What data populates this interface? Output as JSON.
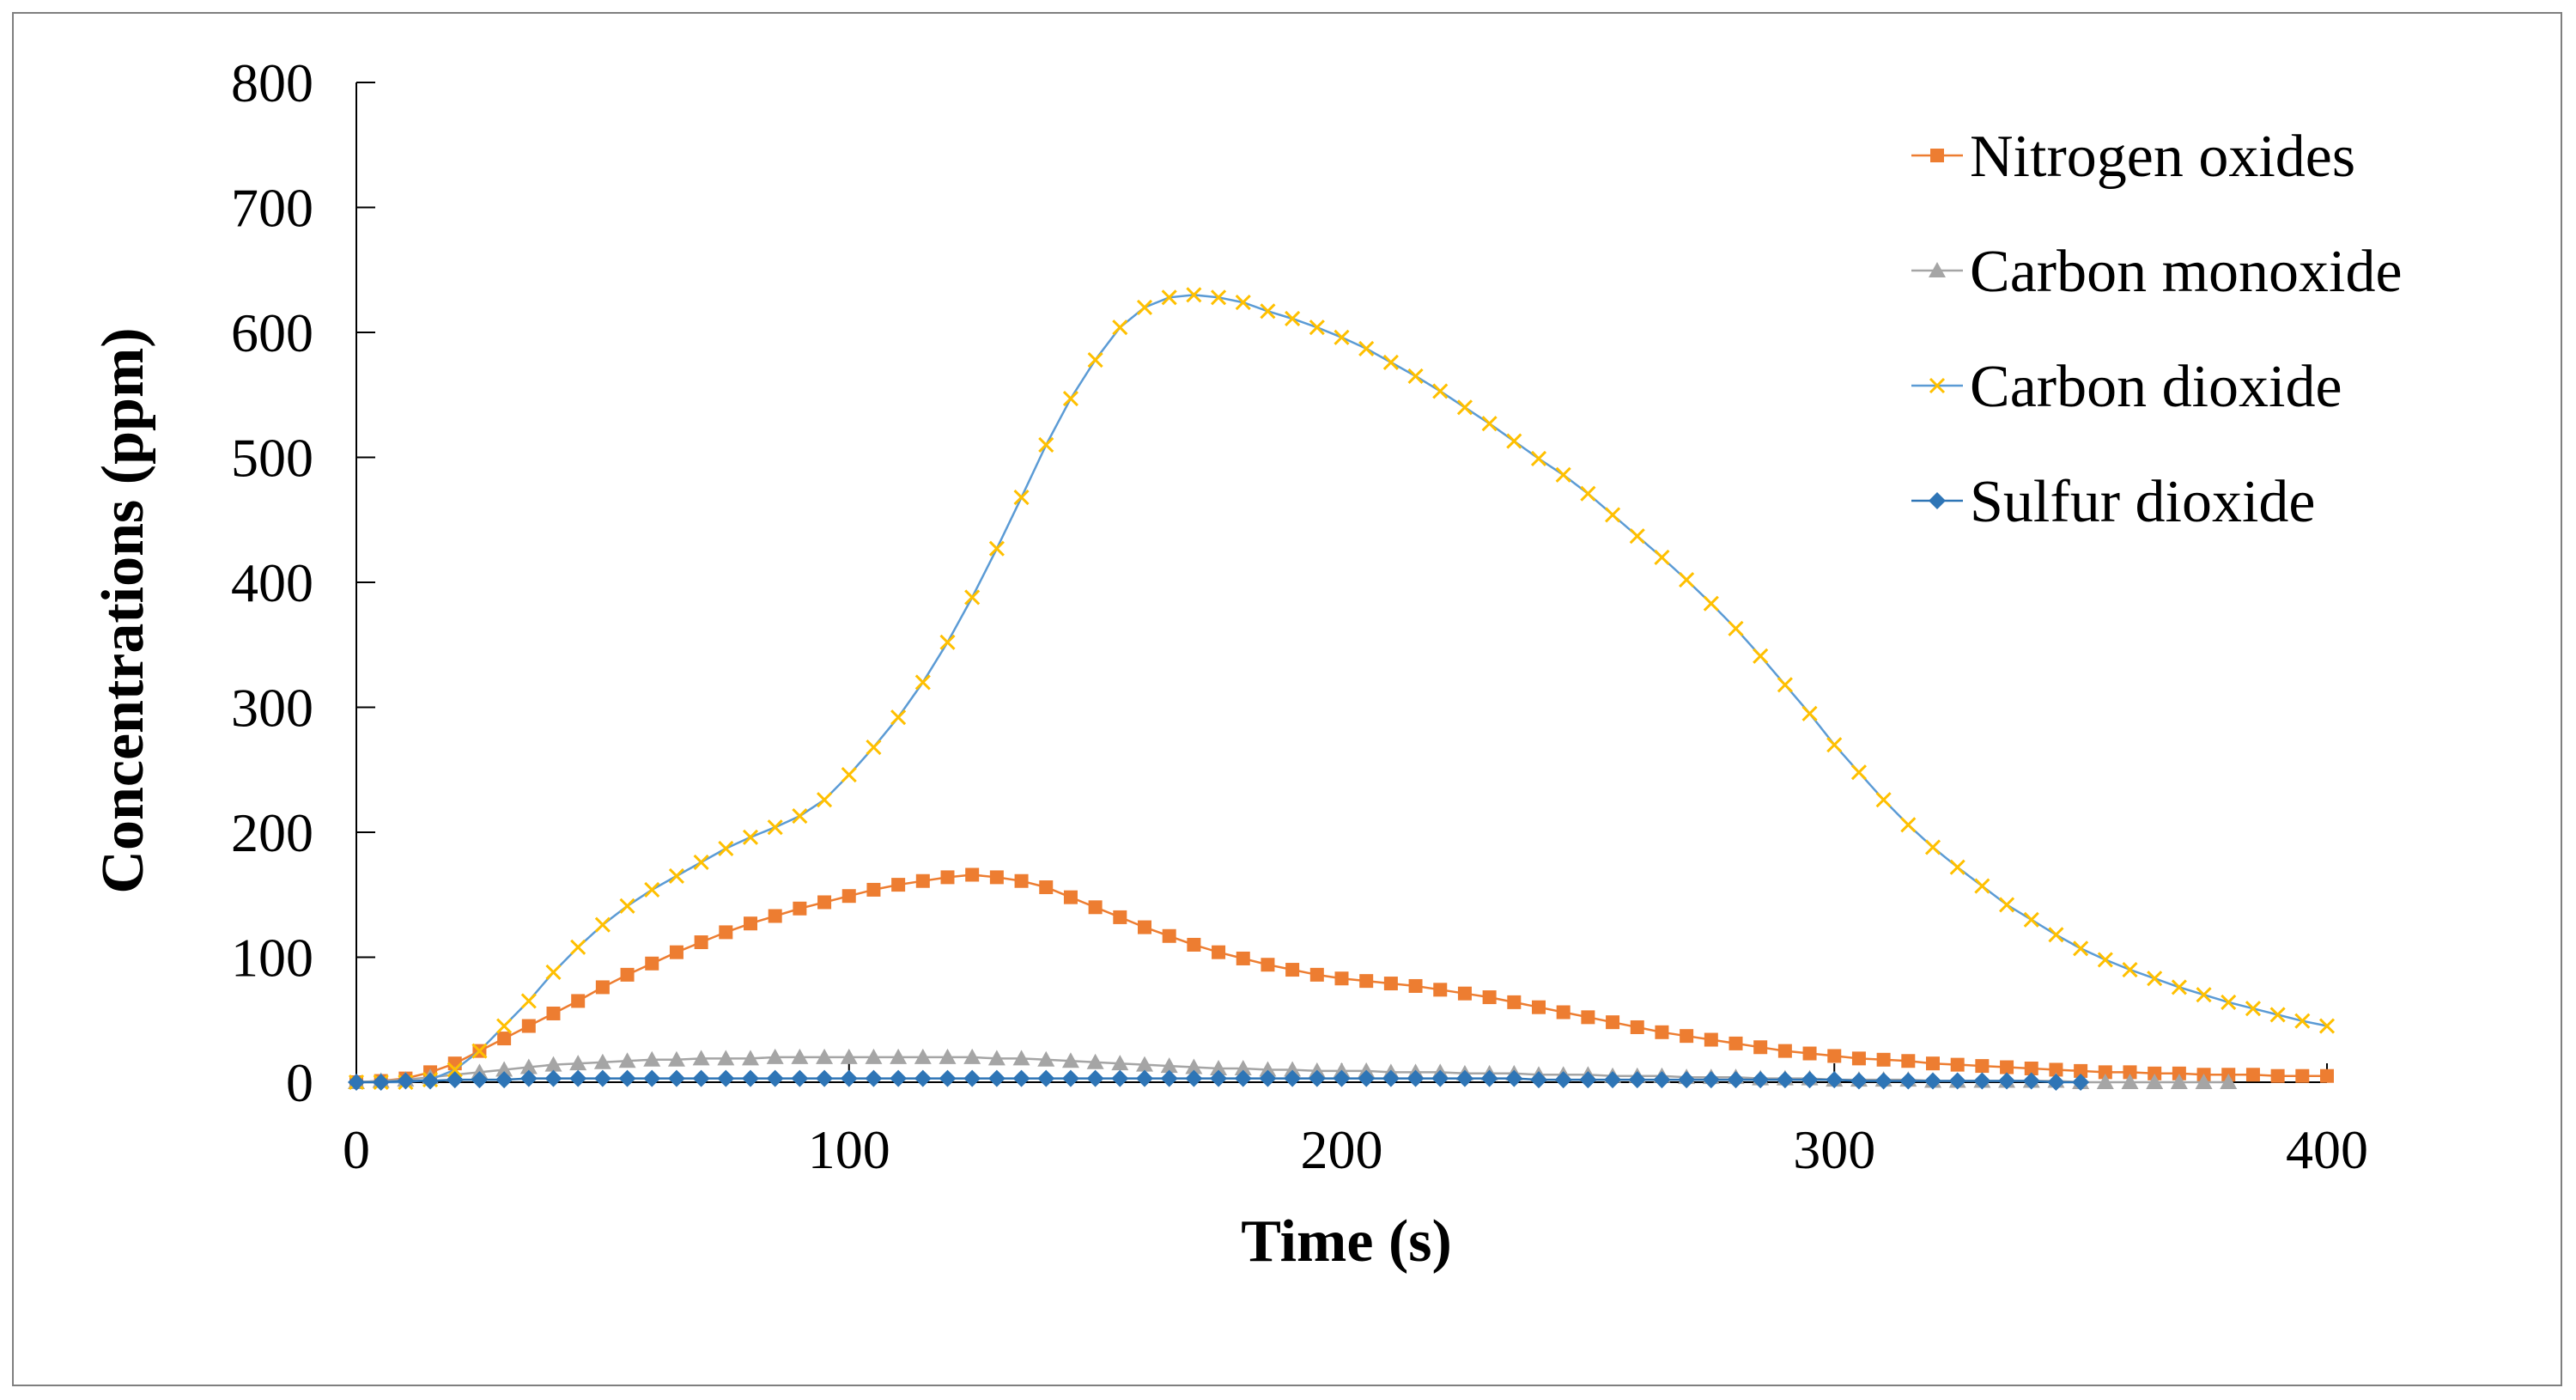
{
  "chart_data": {
    "type": "line",
    "title": "",
    "xlabel": "Time (s)",
    "ylabel": "Concentrations (ppm)",
    "xlim": [
      0,
      400
    ],
    "ylim": [
      0,
      800
    ],
    "xticks": [
      "0",
      "100",
      "200",
      "300",
      "400"
    ],
    "yticks": [
      "0",
      "100",
      "200",
      "300",
      "400",
      "500",
      "600",
      "700",
      "800"
    ],
    "grid": false,
    "legend_position": "top-right",
    "series": [
      {
        "name": "Nitrogen oxides",
        "color": "#ED7D31",
        "marker": "square",
        "x": [
          0,
          5,
          10,
          15,
          20,
          25,
          30,
          35,
          40,
          45,
          50,
          55,
          60,
          65,
          70,
          75,
          80,
          85,
          90,
          95,
          100,
          105,
          110,
          115,
          120,
          125,
          130,
          135,
          140,
          145,
          150,
          155,
          160,
          165,
          170,
          175,
          180,
          185,
          190,
          195,
          200,
          205,
          210,
          215,
          220,
          225,
          230,
          235,
          240,
          245,
          250,
          255,
          260,
          265,
          270,
          275,
          280,
          285,
          290,
          295,
          300,
          305,
          310,
          315,
          320,
          325,
          330,
          335,
          340,
          345,
          350,
          355,
          360,
          365,
          370,
          375,
          380,
          385,
          390,
          395,
          400
        ],
        "y": [
          0,
          1,
          3,
          8,
          15,
          25,
          35,
          45,
          55,
          65,
          76,
          86,
          95,
          104,
          112,
          120,
          127,
          133,
          139,
          144,
          149,
          154,
          158,
          161,
          164,
          166,
          164,
          161,
          156,
          148,
          140,
          132,
          124,
          117,
          110,
          104,
          99,
          94,
          90,
          86,
          83,
          81,
          79,
          77,
          74,
          71,
          68,
          64,
          60,
          56,
          52,
          48,
          44,
          40,
          37,
          34,
          31,
          28,
          25,
          23,
          21,
          19,
          18,
          17,
          15,
          14,
          13,
          12,
          11,
          10,
          9,
          8,
          8,
          7,
          7,
          6,
          6,
          6,
          5,
          5,
          5
        ]
      },
      {
        "name": "Carbon monoxide",
        "color": "#A5A5A5",
        "marker": "triangle",
        "x": [
          0,
          5,
          10,
          15,
          20,
          25,
          30,
          35,
          40,
          45,
          50,
          55,
          60,
          65,
          70,
          75,
          80,
          85,
          90,
          95,
          100,
          105,
          110,
          115,
          120,
          125,
          130,
          135,
          140,
          145,
          150,
          155,
          160,
          165,
          170,
          175,
          180,
          185,
          190,
          195,
          200,
          205,
          210,
          215,
          220,
          225,
          230,
          235,
          240,
          245,
          250,
          255,
          260,
          265,
          270,
          275,
          280,
          285,
          290,
          295,
          300,
          305,
          310,
          315,
          320,
          325,
          330,
          335,
          340,
          345,
          350,
          355,
          360,
          365,
          370,
          375,
          380
        ],
        "y": [
          0,
          1,
          2,
          4,
          6,
          8,
          10,
          12,
          14,
          15,
          16,
          17,
          18,
          18,
          19,
          19,
          19,
          20,
          20,
          20,
          20,
          20,
          20,
          20,
          20,
          20,
          19,
          19,
          18,
          17,
          16,
          15,
          14,
          13,
          12,
          11,
          11,
          10,
          10,
          9,
          9,
          9,
          8,
          8,
          8,
          7,
          7,
          7,
          6,
          6,
          6,
          5,
          5,
          5,
          4,
          4,
          4,
          3,
          3,
          3,
          2,
          2,
          2,
          2,
          1,
          1,
          1,
          1,
          1,
          1,
          0,
          0,
          0,
          0,
          0,
          0,
          0
        ]
      },
      {
        "name": "Carbon dioxide",
        "color": "#FFC000",
        "line_color": "#5B9BD5",
        "marker": "x",
        "x": [
          0,
          5,
          10,
          15,
          20,
          25,
          30,
          35,
          40,
          45,
          50,
          55,
          60,
          65,
          70,
          75,
          80,
          85,
          90,
          95,
          100,
          105,
          110,
          115,
          120,
          125,
          130,
          135,
          140,
          145,
          150,
          155,
          160,
          165,
          170,
          175,
          180,
          185,
          190,
          195,
          200,
          205,
          210,
          215,
          220,
          225,
          230,
          235,
          240,
          245,
          250,
          255,
          260,
          265,
          270,
          275,
          280,
          285,
          290,
          295,
          300,
          305,
          310,
          315,
          320,
          325,
          330,
          335,
          340,
          345,
          350,
          355,
          360,
          365,
          370,
          375,
          380,
          385,
          390,
          395,
          400
        ],
        "y": [
          0,
          0,
          0,
          2,
          10,
          25,
          45,
          65,
          88,
          108,
          126,
          141,
          154,
          165,
          176,
          187,
          196,
          204,
          213,
          226,
          246,
          268,
          292,
          320,
          352,
          388,
          427,
          468,
          510,
          547,
          578,
          604,
          620,
          628,
          630,
          628,
          624,
          617,
          611,
          604,
          596,
          587,
          576,
          565,
          553,
          540,
          527,
          513,
          499,
          486,
          471,
          454,
          437,
          420,
          402,
          383,
          363,
          341,
          318,
          295,
          270,
          248,
          226,
          206,
          188,
          172,
          157,
          142,
          130,
          118,
          107,
          98,
          90,
          83,
          76,
          70,
          64,
          59,
          54,
          49,
          45
        ]
      },
      {
        "name": "Sulfur dioxide",
        "color": "#2E75B6",
        "marker": "diamond",
        "x": [
          0,
          5,
          10,
          15,
          20,
          25,
          30,
          35,
          40,
          45,
          50,
          55,
          60,
          65,
          70,
          75,
          80,
          85,
          90,
          95,
          100,
          105,
          110,
          115,
          120,
          125,
          130,
          135,
          140,
          145,
          150,
          155,
          160,
          165,
          170,
          175,
          180,
          185,
          190,
          195,
          200,
          205,
          210,
          215,
          220,
          225,
          230,
          235,
          240,
          245,
          250,
          255,
          260,
          265,
          270,
          275,
          280,
          285,
          290,
          295,
          300,
          305,
          310,
          315,
          320,
          325,
          330,
          335,
          340,
          345,
          350
        ],
        "y": [
          0,
          0,
          1,
          1,
          2,
          2,
          2,
          3,
          3,
          3,
          3,
          3,
          3,
          3,
          3,
          3,
          3,
          3,
          3,
          3,
          3,
          3,
          3,
          3,
          3,
          3,
          3,
          3,
          3,
          3,
          3,
          3,
          3,
          3,
          3,
          3,
          3,
          3,
          3,
          3,
          3,
          3,
          3,
          3,
          3,
          3,
          3,
          3,
          2,
          2,
          2,
          2,
          2,
          2,
          2,
          2,
          2,
          2,
          2,
          2,
          2,
          1,
          1,
          1,
          1,
          1,
          1,
          1,
          1,
          0,
          0
        ]
      }
    ]
  }
}
